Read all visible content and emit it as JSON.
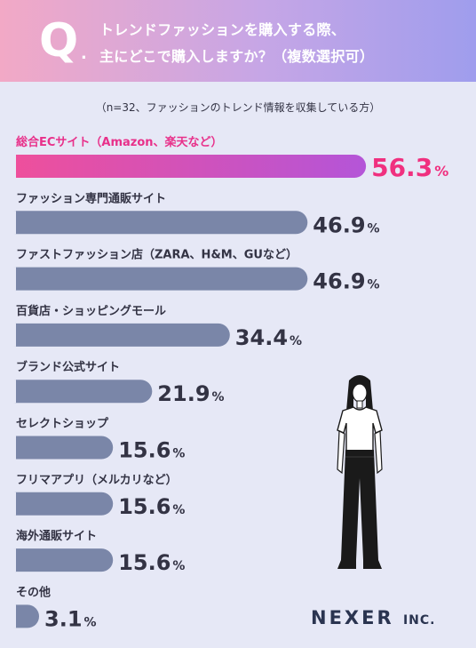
{
  "header": {
    "q_mark": "Q",
    "q_dot": ".",
    "title_line1": "トレンドファッションを購入する際、",
    "title_line2": "主にどこで購入しますか？（複数選択可）"
  },
  "subtitle": "（n=32、ファッションのトレンド情報を収集している方）",
  "chart_data": {
    "type": "bar",
    "orientation": "horizontal",
    "title": "トレンドファッションを購入する際、主にどこで購入しますか？（複数選択可）",
    "subtitle": "（n=32、ファッションのトレンド情報を収集している方）",
    "unit": "%",
    "xlim": [
      0,
      100
    ],
    "grid": false,
    "categories": [
      "総合ECサイト（Amazon、楽天など）",
      "ファッション専門通販サイト",
      "ファストファッション店（ZARA、H&M、GUなど）",
      "百貨店・ショッピングモール",
      "ブランド公式サイト",
      "セレクトショップ",
      "フリマアプリ（メルカリなど）",
      "海外通販サイト",
      "その他"
    ],
    "values": [
      56.3,
      46.9,
      46.9,
      34.4,
      21.9,
      15.6,
      15.6,
      15.6,
      3.1
    ],
    "value_labels": [
      "56.3",
      "46.9",
      "46.9",
      "34.4",
      "21.9",
      "15.6",
      "15.6",
      "15.6",
      "3.1"
    ],
    "highlight_index": 0,
    "colors": {
      "highlight_start": "#f04f9a",
      "highlight_end": "#b455d8",
      "highlight_label": "#e8308a",
      "highlight_value": "#f0307f",
      "bar": "#7a86a8",
      "label": "#333344",
      "value": "#333344"
    }
  },
  "brand": {
    "name": "NEXER",
    "suffix": "INC."
  },
  "illustration": {
    "icon": "woman-standing-illustration"
  }
}
